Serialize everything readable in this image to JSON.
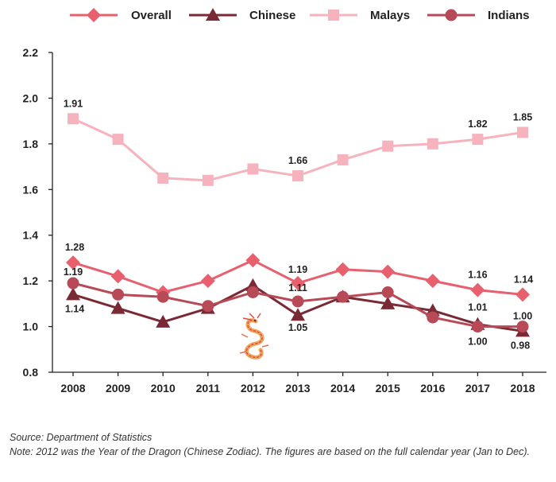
{
  "chart_data": {
    "type": "line",
    "categories": [
      "2008",
      "2009",
      "2010",
      "2011",
      "2012",
      "2013",
      "2014",
      "2015",
      "2016",
      "2017",
      "2018"
    ],
    "ylim": [
      0.8,
      2.2
    ],
    "yticks": [
      "0.8",
      "1.0",
      "1.2",
      "1.4",
      "1.6",
      "1.8",
      "2.0",
      "2.2"
    ],
    "grid": false,
    "legend_position": "top",
    "series": [
      {
        "name": "Malays",
        "color": "#f6b3bd",
        "marker": "square",
        "values": [
          1.91,
          1.82,
          1.65,
          1.64,
          1.69,
          1.66,
          1.73,
          1.79,
          1.8,
          1.82,
          1.85
        ],
        "labels": {
          "0": "1.91",
          "5": "1.66",
          "9": "1.82",
          "10": "1.85"
        }
      },
      {
        "name": "Overall",
        "color": "#e8606e",
        "marker": "diamond",
        "values": [
          1.28,
          1.22,
          1.15,
          1.2,
          1.29,
          1.19,
          1.25,
          1.24,
          1.2,
          1.16,
          1.14
        ],
        "labels": {
          "0": "1.28",
          "5": "1.19",
          "9": "1.16",
          "10": "1.14"
        }
      },
      {
        "name": "Chinese",
        "color": "#7a2a35",
        "marker": "triangle",
        "values": [
          1.14,
          1.08,
          1.02,
          1.08,
          1.18,
          1.05,
          1.13,
          1.1,
          1.07,
          1.01,
          0.98
        ],
        "labels": {
          "0": "1.14",
          "5": "1.05",
          "9": "1.01",
          "10": "0.98"
        }
      },
      {
        "name": "Indians",
        "color": "#b84a58",
        "marker": "circle",
        "values": [
          1.19,
          1.14,
          1.13,
          1.09,
          1.15,
          1.11,
          1.13,
          1.15,
          1.04,
          1.0,
          1.0
        ],
        "labels": {
          "0": "1.19",
          "5": "1.11",
          "9": "1.00",
          "10": "1.00"
        }
      }
    ],
    "legend": [
      "Overall",
      "Chinese",
      "Malays",
      "Indians"
    ],
    "annotation_icon": "dragon-icon"
  },
  "footer": {
    "source": "Source: Department of Statistics",
    "note": "Note: 2012 was the Year of the Dragon (Chinese Zodiac). The figures are based on the full calendar year (Jan to Dec)."
  }
}
